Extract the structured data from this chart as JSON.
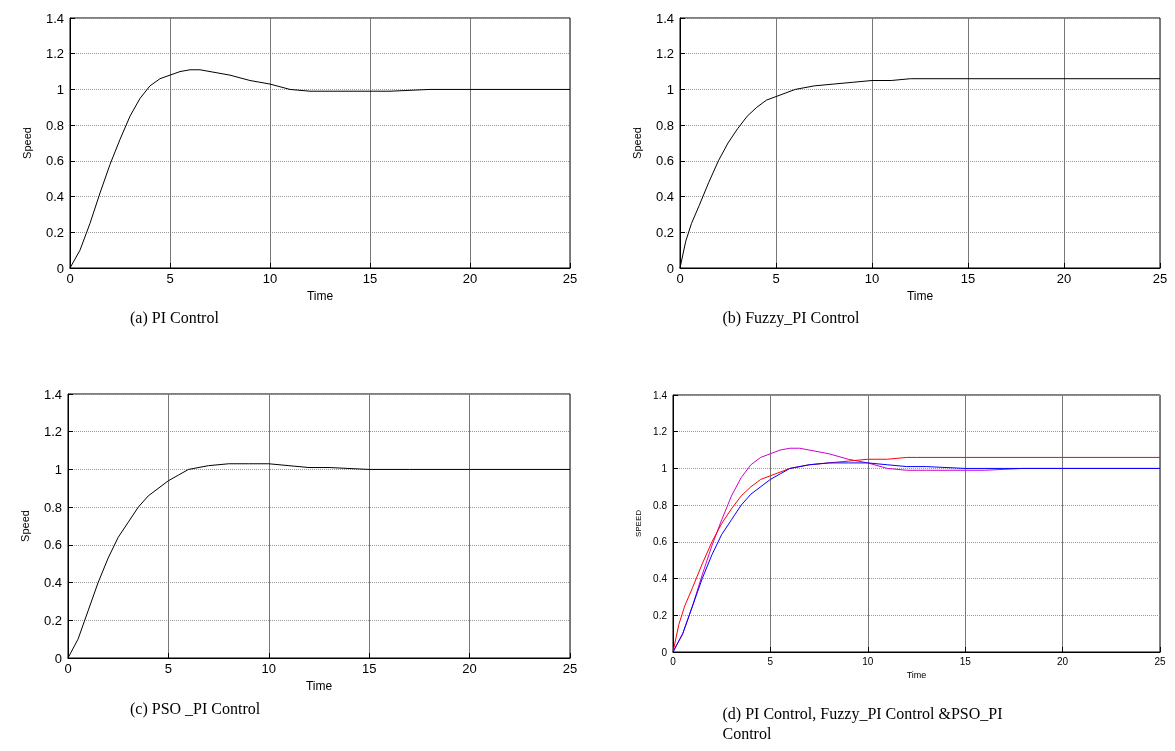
{
  "chart_data": [
    {
      "type": "line",
      "title": "(a) PI Control",
      "xlabel": "Time",
      "ylabel": "Speed",
      "xlim": [
        0,
        25
      ],
      "xticks": [
        0,
        5,
        10,
        15,
        20,
        25
      ],
      "ylim": [
        0,
        1.4
      ],
      "yticks": [
        0,
        0.2,
        0.4,
        0.6,
        0.8,
        1,
        1.2,
        1.4
      ],
      "grid": true,
      "marker": "none",
      "line_style": "solid",
      "series": [
        {
          "color": "#000000",
          "x": [
            0,
            0.5,
            1,
            1.5,
            2,
            2.5,
            3,
            3.5,
            4,
            4.5,
            5,
            5.5,
            6,
            6.5,
            7,
            8,
            9,
            10,
            11,
            12,
            13,
            15,
            16,
            18,
            20,
            25
          ],
          "values": [
            0,
            0.1,
            0.25,
            0.42,
            0.58,
            0.72,
            0.85,
            0.95,
            1.02,
            1.06,
            1.08,
            1.1,
            1.11,
            1.11,
            1.1,
            1.08,
            1.05,
            1.03,
            1.0,
            0.99,
            0.99,
            0.99,
            0.99,
            1.0,
            1.0,
            1.0
          ]
        }
      ]
    },
    {
      "type": "line",
      "title": "(b) Fuzzy_PI Control",
      "xlabel": "Time",
      "ylabel": "Speed",
      "xlim": [
        0,
        25
      ],
      "xticks": [
        0,
        5,
        10,
        15,
        20,
        25
      ],
      "ylim": [
        0,
        1.4
      ],
      "yticks": [
        0,
        0.2,
        0.4,
        0.6,
        0.8,
        1,
        1.2,
        1.4
      ],
      "grid": true,
      "marker": "none",
      "line_style": "solid",
      "series": [
        {
          "color": "#000000",
          "x": [
            0,
            0.3,
            0.6,
            1,
            1.5,
            2,
            2.5,
            3,
            3.5,
            4,
            4.5,
            5,
            5.5,
            6,
            7,
            8,
            9,
            10,
            11,
            12,
            12.5,
            15,
            20,
            25
          ],
          "values": [
            0,
            0.15,
            0.25,
            0.35,
            0.48,
            0.6,
            0.7,
            0.78,
            0.85,
            0.9,
            0.94,
            0.96,
            0.98,
            1.0,
            1.02,
            1.03,
            1.04,
            1.05,
            1.05,
            1.06,
            1.06,
            1.06,
            1.06,
            1.06
          ]
        }
      ]
    },
    {
      "type": "line",
      "title": "(c) PSO _PI Control",
      "xlabel": "Time",
      "ylabel": "Speed",
      "xlim": [
        0,
        25
      ],
      "xticks": [
        0,
        5,
        10,
        15,
        20,
        25
      ],
      "ylim": [
        0,
        1.4
      ],
      "yticks": [
        0,
        0.2,
        0.4,
        0.6,
        0.8,
        1,
        1.2,
        1.4
      ],
      "grid": true,
      "marker": "none",
      "line_style": "solid",
      "series": [
        {
          "color": "#000000",
          "x": [
            0,
            0.5,
            1,
            1.5,
            2,
            2.5,
            3,
            3.5,
            4,
            5,
            5.5,
            6,
            7,
            8,
            9,
            10,
            11,
            12,
            13,
            15,
            17,
            20,
            25
          ],
          "values": [
            0,
            0.1,
            0.25,
            0.4,
            0.53,
            0.64,
            0.72,
            0.8,
            0.86,
            0.94,
            0.97,
            1.0,
            1.02,
            1.03,
            1.03,
            1.03,
            1.02,
            1.01,
            1.01,
            1.0,
            1.0,
            1.0,
            1.0
          ]
        }
      ]
    },
    {
      "type": "line",
      "title": "(d) PI Control, Fuzzy_PI Control &PSO_PI Control",
      "xlabel": "Time",
      "ylabel": "SPEED",
      "xlim": [
        0,
        25
      ],
      "xticks": [
        0,
        5,
        10,
        15,
        20,
        25
      ],
      "ylim": [
        0,
        1.4
      ],
      "yticks": [
        0,
        0.2,
        0.4,
        0.6,
        0.8,
        1,
        1.2,
        1.4
      ],
      "grid": true,
      "marker": "none",
      "line_style": "solid",
      "series": [
        {
          "color": "#cc00cc",
          "x": [
            0,
            0.5,
            1,
            1.5,
            2,
            2.5,
            3,
            3.5,
            4,
            4.5,
            5,
            5.5,
            6,
            6.5,
            7,
            8,
            9,
            10,
            11,
            12,
            13,
            15,
            16,
            18,
            20,
            25
          ],
          "values": [
            0,
            0.1,
            0.25,
            0.42,
            0.58,
            0.72,
            0.85,
            0.95,
            1.02,
            1.06,
            1.08,
            1.1,
            1.11,
            1.11,
            1.1,
            1.08,
            1.05,
            1.03,
            1.0,
            0.99,
            0.99,
            0.99,
            0.99,
            1.0,
            1.0,
            1.0
          ]
        },
        {
          "color": "#ff0000",
          "x": [
            0,
            0.3,
            0.6,
            1,
            1.5,
            2,
            2.5,
            3,
            3.5,
            4,
            4.5,
            5,
            5.5,
            6,
            7,
            8,
            9,
            10,
            11,
            12,
            12.5,
            15,
            20,
            25
          ],
          "values": [
            0,
            0.15,
            0.25,
            0.35,
            0.48,
            0.6,
            0.7,
            0.78,
            0.85,
            0.9,
            0.94,
            0.96,
            0.98,
            1.0,
            1.02,
            1.03,
            1.04,
            1.05,
            1.05,
            1.06,
            1.06,
            1.06,
            1.06,
            1.06
          ]
        },
        {
          "color": "#0000ff",
          "x": [
            0,
            0.5,
            1,
            1.5,
            2,
            2.5,
            3,
            3.5,
            4,
            5,
            5.5,
            6,
            7,
            8,
            9,
            10,
            11,
            12,
            13,
            15,
            17,
            20,
            25
          ],
          "values": [
            0,
            0.1,
            0.25,
            0.4,
            0.53,
            0.64,
            0.72,
            0.8,
            0.86,
            0.94,
            0.97,
            1.0,
            1.02,
            1.03,
            1.03,
            1.03,
            1.02,
            1.01,
            1.01,
            1.0,
            1.0,
            1.0,
            1.0
          ]
        }
      ]
    }
  ]
}
